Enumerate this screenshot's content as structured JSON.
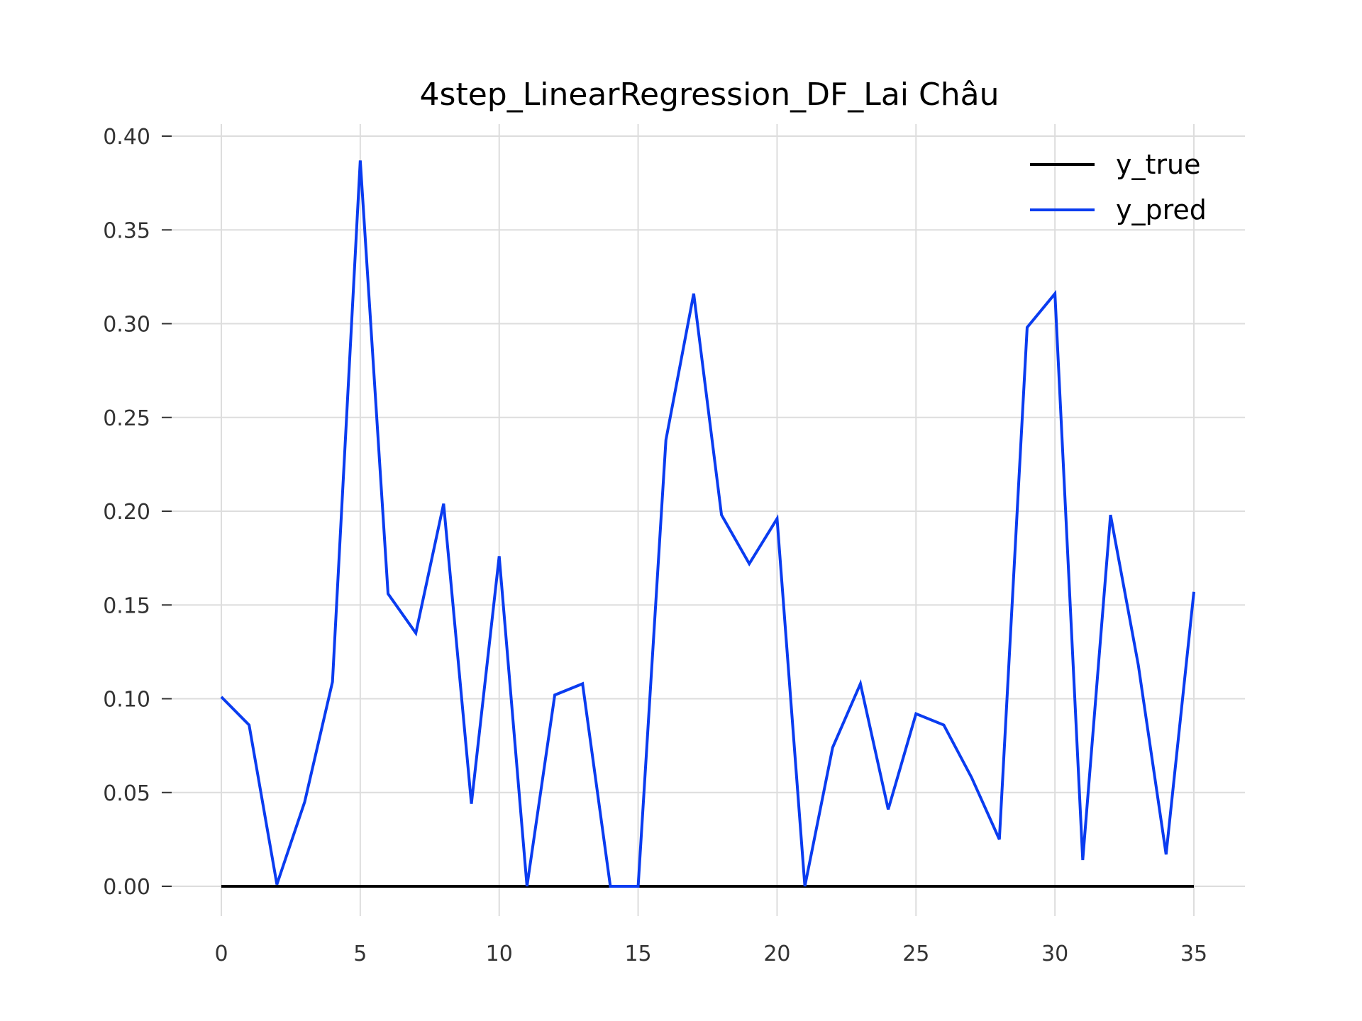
{
  "chart_data": {
    "type": "line",
    "title": "4step_LinearRegression_DF_Lai Châu",
    "xlabel": "",
    "ylabel": "",
    "xlim": [
      0,
      35
    ],
    "ylim": [
      0.0,
      0.4
    ],
    "xticks": [
      0,
      5,
      10,
      15,
      20,
      25,
      30,
      35
    ],
    "xtick_labels": [
      "0",
      "5",
      "10",
      "15",
      "20",
      "25",
      "30",
      "35"
    ],
    "yticks": [
      0.0,
      0.05,
      0.1,
      0.15,
      0.2,
      0.25,
      0.3,
      0.35,
      0.4
    ],
    "ytick_labels": [
      "0.00",
      "0.05",
      "0.10",
      "0.15",
      "0.20",
      "0.25",
      "0.30",
      "0.35",
      "0.40"
    ],
    "grid": true,
    "legend_position": "top-right",
    "x": [
      0,
      1,
      2,
      3,
      4,
      5,
      6,
      7,
      8,
      9,
      10,
      11,
      12,
      13,
      14,
      15,
      16,
      17,
      18,
      19,
      20,
      21,
      22,
      23,
      24,
      25,
      26,
      27,
      28,
      29,
      30,
      31,
      32,
      33,
      34,
      35
    ],
    "series": [
      {
        "name": "y_true",
        "color": "#000000",
        "values": [
          0,
          0,
          0,
          0,
          0,
          0,
          0,
          0,
          0,
          0,
          0,
          0,
          0,
          0,
          0,
          0,
          0,
          0,
          0,
          0,
          0,
          0,
          0,
          0,
          0,
          0,
          0,
          0,
          0,
          0,
          0,
          0,
          0,
          0,
          0,
          0
        ]
      },
      {
        "name": "y_pred",
        "color": "#0a3cf0",
        "values": [
          0.101,
          0.086,
          0.001,
          0.045,
          0.109,
          0.387,
          0.156,
          0.135,
          0.204,
          0.044,
          0.176,
          0.0,
          0.102,
          0.108,
          0.0,
          0.0,
          0.238,
          0.316,
          0.198,
          0.172,
          0.196,
          0.0,
          0.074,
          0.108,
          0.041,
          0.092,
          0.086,
          0.058,
          0.025,
          0.298,
          0.316,
          0.014,
          0.198,
          0.118,
          0.017,
          0.157
        ]
      }
    ]
  },
  "colors": {
    "grid": "#dddddd",
    "tick": "#333333",
    "background": "#ffffff"
  }
}
